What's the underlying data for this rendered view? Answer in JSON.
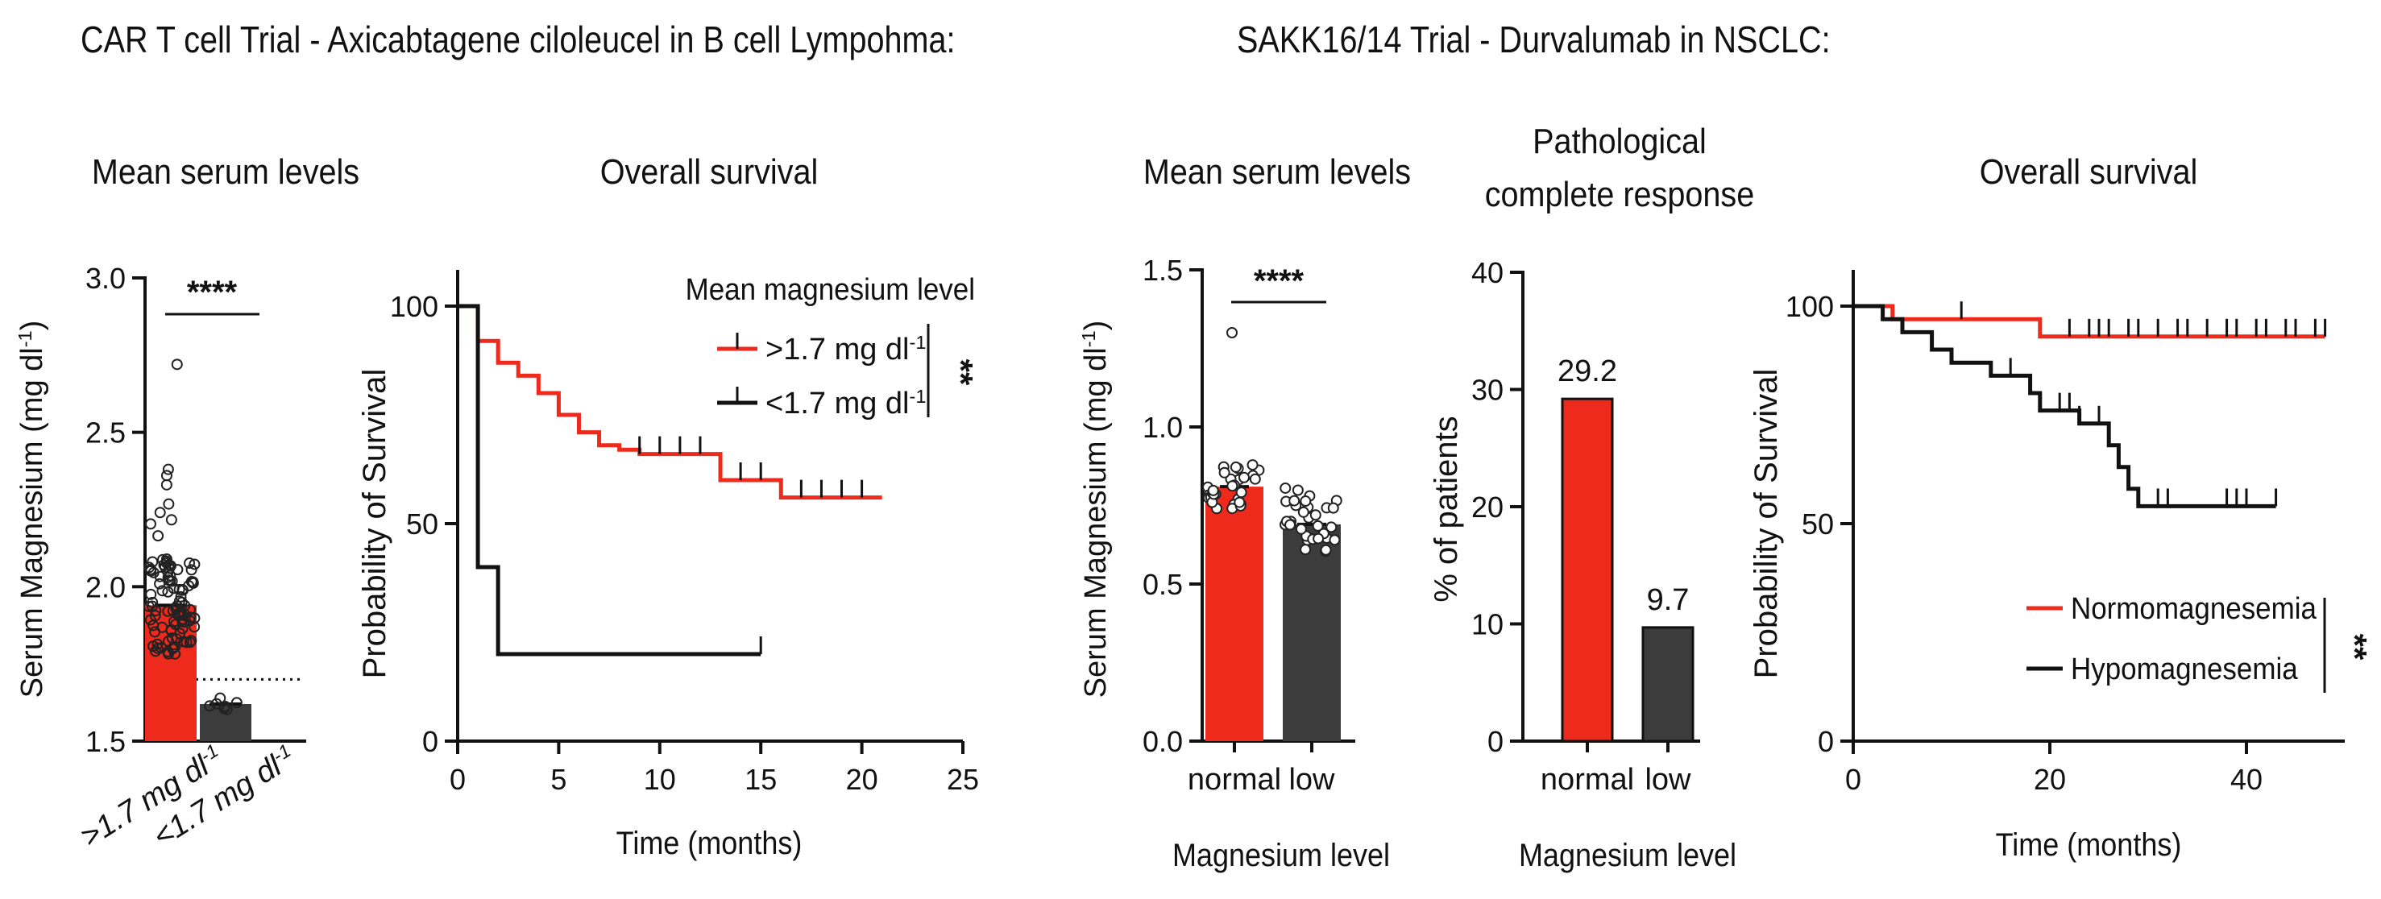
{
  "titles": {
    "car_t": "CAR T cell Trial - Axicabtagene ciloleucel in B cell Lympohma:",
    "sakk": "SAKK16/14 Trial - Durvalumab in NSCLC:"
  },
  "colors": {
    "red": "#ee2a1c",
    "dark": "#3c3c3c",
    "black": "#111111"
  },
  "chart_data": [
    {
      "id": "A",
      "type": "bar",
      "title": "Mean serum levels",
      "ylabel": "Serum Magnesium (mg dl-1)",
      "ylim": [
        1.5,
        3.0
      ],
      "yticks": [
        "1.5",
        "2.0",
        "2.5",
        "3.0"
      ],
      "categories": [
        ">1.7 mg dl-1",
        "<1.7 mg dl-1"
      ],
      "values": [
        1.94,
        1.62
      ],
      "reference_line": 1.7,
      "significance": "****"
    },
    {
      "id": "B",
      "type": "line",
      "title": "Overall survival",
      "xlabel": "Time (months)",
      "ylabel": "Probability of Survival",
      "xlim": [
        0,
        25
      ],
      "ylim": [
        0,
        100
      ],
      "xticks": [
        "0",
        "5",
        "10",
        "15",
        "20",
        "25"
      ],
      "yticks": [
        "0",
        "50",
        "100"
      ],
      "legend_title": "Mean magnesium level",
      "significance": "**",
      "series": [
        {
          "name": ">1.7 mg dl-1",
          "steps": [
            [
              0,
              100
            ],
            [
              1,
              92
            ],
            [
              2,
              87
            ],
            [
              3,
              84
            ],
            [
              4,
              80
            ],
            [
              5,
              75
            ],
            [
              6,
              71
            ],
            [
              7,
              68
            ],
            [
              8,
              67
            ],
            [
              9,
              66
            ],
            [
              13,
              60
            ],
            [
              16,
              56
            ],
            [
              21,
              56
            ]
          ],
          "censor": [
            9,
            10,
            11,
            12,
            14,
            15,
            17,
            18,
            19,
            20
          ]
        },
        {
          "name": "<1.7 mg dl-1",
          "steps": [
            [
              0,
              100
            ],
            [
              1,
              40
            ],
            [
              2,
              20
            ],
            [
              15,
              20
            ]
          ],
          "censor": [
            15
          ]
        }
      ]
    },
    {
      "id": "C",
      "type": "bar",
      "title": "Mean serum levels",
      "ylabel": "Serum Magnesium (mg dl-1)",
      "xlabel": "Magnesium level",
      "ylim": [
        0,
        1.5
      ],
      "yticks": [
        "0.0",
        "0.5",
        "1.0",
        "1.5"
      ],
      "categories": [
        "normal",
        "low"
      ],
      "values": [
        0.81,
        0.69
      ],
      "significance": "****"
    },
    {
      "id": "D",
      "type": "bar",
      "title": [
        "Pathological",
        "complete response"
      ],
      "ylabel": "% of patients",
      "xlabel": "Magnesium level",
      "ylim": [
        0,
        40
      ],
      "yticks": [
        "0",
        "10",
        "20",
        "30",
        "40"
      ],
      "categories": [
        "normal",
        "low"
      ],
      "values": [
        29.2,
        9.7
      ],
      "data_labels": [
        "29.2",
        "9.7"
      ]
    },
    {
      "id": "E",
      "type": "line",
      "title": "Overall survival",
      "xlabel": "Time (months)",
      "ylabel": "Probability of Survival",
      "xlim": [
        0,
        50
      ],
      "ylim": [
        0,
        100
      ],
      "xticks": [
        "0",
        "20",
        "40"
      ],
      "yticks": [
        "0",
        "50",
        "100"
      ],
      "significance": "**",
      "series": [
        {
          "name": "Normomagnesemia",
          "steps": [
            [
              0,
              100
            ],
            [
              4,
              97
            ],
            [
              19,
              93
            ],
            [
              48,
              93
            ]
          ],
          "censor": [
            11,
            22,
            24,
            25,
            26,
            28,
            29,
            31,
            33,
            34,
            36,
            38,
            39,
            41,
            42,
            44,
            45,
            47,
            48
          ]
        },
        {
          "name": "Hypomagnesemia",
          "steps": [
            [
              0,
              100
            ],
            [
              3,
              97
            ],
            [
              5,
              94
            ],
            [
              8,
              90
            ],
            [
              10,
              87
            ],
            [
              14,
              84
            ],
            [
              18,
              80
            ],
            [
              19,
              76
            ],
            [
              23,
              73
            ],
            [
              26,
              68
            ],
            [
              27,
              63
            ],
            [
              28,
              58
            ],
            [
              29,
              54
            ],
            [
              43,
              54
            ]
          ],
          "censor": [
            16,
            18,
            21,
            22,
            23,
            25,
            31,
            32,
            38,
            39,
            40,
            43
          ]
        }
      ]
    }
  ]
}
